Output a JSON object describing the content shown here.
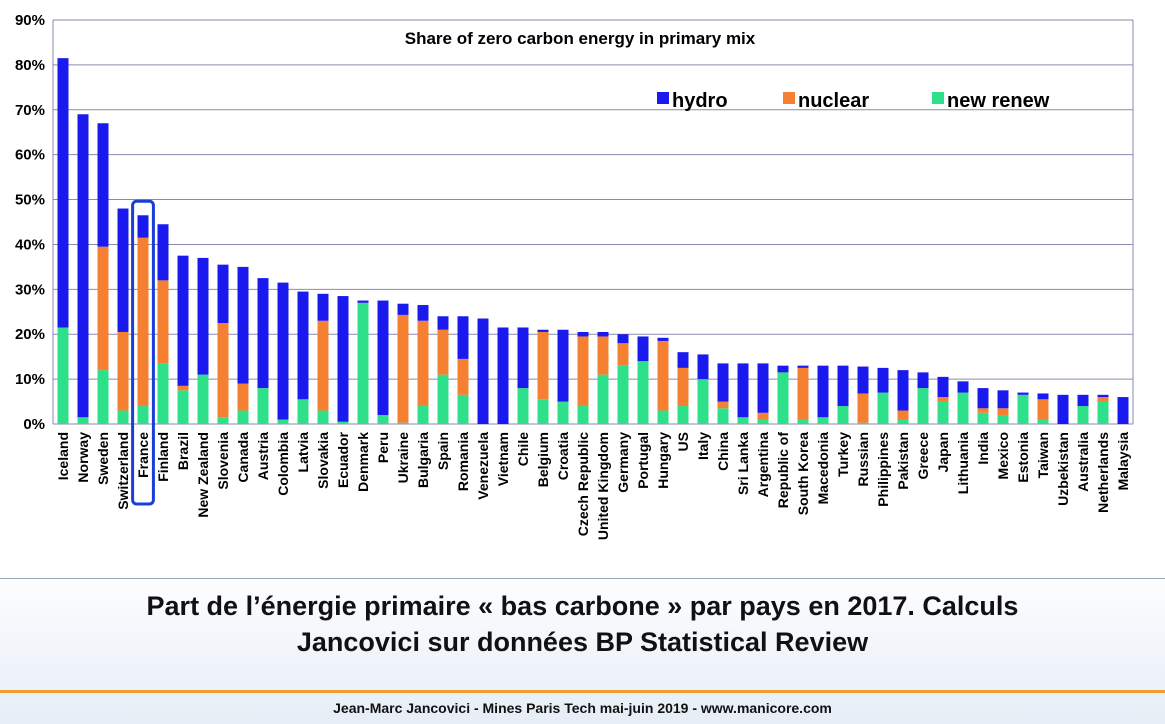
{
  "caption": {
    "line1": "Part de l’énergie primaire « bas carbone » par pays en 2017. Calculs",
    "line2": "Jancovici sur données BP Statistical Review"
  },
  "footer": "Jean-Marc Jancovici - Mines Paris Tech mai-juin 2019 - www.manicore.com",
  "colors": {
    "hydro": "#1a1aee",
    "nuclear": "#f58031",
    "new_renew": "#2ee08a",
    "grid": "#8a8ab0",
    "highlight": "#1a3fd6"
  },
  "chart_data": {
    "type": "bar",
    "stacked": true,
    "title": "Share of zero carbon energy in primary mix",
    "ylim": [
      0,
      90
    ],
    "yticks": [
      "0%",
      "10%",
      "20%",
      "30%",
      "40%",
      "50%",
      "60%",
      "70%",
      "80%",
      "90%"
    ],
    "grid": true,
    "legend_position": "top-right",
    "highlighted_category": "France",
    "categories": [
      "Iceland",
      "Norway",
      "Sweden",
      "Switzerland",
      "France",
      "Finland",
      "Brazil",
      "New Zealand",
      "Slovenia",
      "Canada",
      "Austria",
      "Colombia",
      "Latvia",
      "Slovakia",
      "Ecuador",
      "Denmark",
      "Peru",
      "Ukraine",
      "Bulgaria",
      "Spain",
      "Romania",
      "Venezuela",
      "Vietnam",
      "Chile",
      "Belgium",
      "Croatia",
      "Czech Republic",
      "United Kingdom",
      "Germany",
      "Portugal",
      "Hungary",
      "US",
      "Italy",
      "China",
      "Sri Lanka",
      "Argentina",
      "Republic of",
      "South Korea",
      "Macedonia",
      "Turkey",
      "Russian",
      "Philippines",
      "Pakistan",
      "Greece",
      "Japan",
      "Lithuania",
      "India",
      "Mexico",
      "Estonia",
      "Taiwan",
      "Uzbekistan",
      "Australia",
      "Netherlands",
      "Malaysia"
    ],
    "series": [
      {
        "name": "new renew",
        "values": [
          21.5,
          1.5,
          12,
          3,
          4,
          13.5,
          7.5,
          11,
          1.5,
          3,
          8,
          1,
          5.5,
          3,
          0.5,
          27,
          2,
          0.3,
          4,
          11,
          6.5,
          0,
          0,
          8,
          5.5,
          5,
          4,
          11,
          13,
          14,
          3,
          4,
          10,
          3.5,
          1.5,
          1,
          11.5,
          1,
          1.5,
          4,
          0.3,
          7,
          1,
          8,
          5,
          7,
          2.5,
          2,
          6.5,
          1,
          0,
          4,
          5,
          0
        ]
      },
      {
        "name": "nuclear",
        "values": [
          0,
          0,
          27.5,
          17.5,
          37.5,
          18.5,
          1,
          0,
          21,
          6,
          0,
          0,
          0,
          20,
          0,
          0,
          0,
          24,
          19,
          10,
          8,
          0,
          0,
          0,
          15,
          0,
          15.5,
          8.5,
          5,
          0,
          15.5,
          8.5,
          0,
          1.5,
          0,
          1.5,
          0,
          11.5,
          0,
          0,
          6.5,
          0,
          2,
          0,
          1,
          0,
          1,
          1.5,
          0,
          4.5,
          0,
          0,
          1,
          0
        ]
      },
      {
        "name": "hydro",
        "values": [
          60,
          67.5,
          27.5,
          27.5,
          5,
          12.5,
          29,
          26,
          13,
          26,
          24.5,
          30.5,
          24,
          6,
          28,
          0.5,
          25.5,
          2.5,
          3.5,
          3,
          9.5,
          23.5,
          21.5,
          13.5,
          0.5,
          16,
          1,
          1,
          2,
          5.5,
          0.7,
          3.5,
          5.5,
          8.5,
          12,
          11,
          1.5,
          0.5,
          11.5,
          9,
          6,
          5.5,
          9,
          3.5,
          4.5,
          2.5,
          4.5,
          4,
          0.5,
          1.3,
          6.5,
          2.5,
          0.5,
          6
        ]
      }
    ]
  }
}
